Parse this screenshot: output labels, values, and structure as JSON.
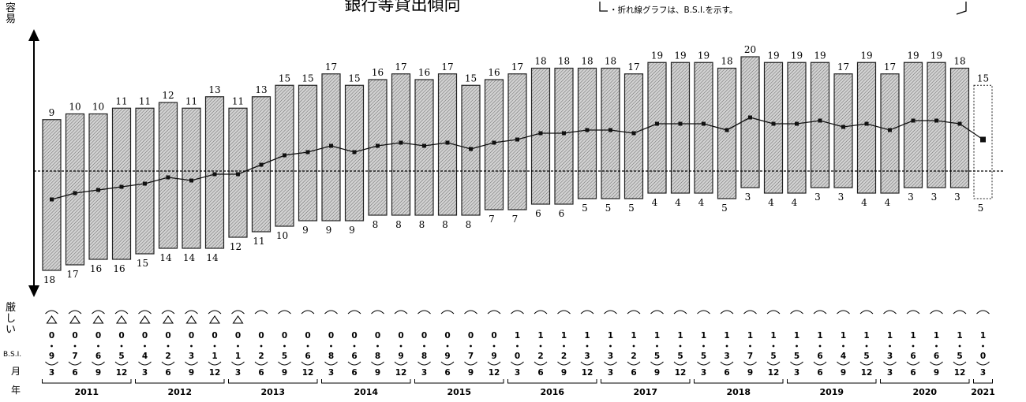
{
  "title": "銀行等貸出傾向",
  "legend_note": "・折れ線グラフは、B.S.I.を示す。",
  "y_axis": {
    "top_label": "容易",
    "bottom_label": "厳しい"
  },
  "row_labels": {
    "bsi": "B.S.I.",
    "month": "月",
    "year": "年"
  },
  "colors": {
    "bar_fill": "#c9c9c9",
    "bar_stroke": "#222222",
    "line": "#111111",
    "axis": "#000000"
  },
  "chart_data": {
    "type": "bar",
    "title": "銀行等貸出傾向",
    "note": "・折れ線グラフは、B.S.I.を示す。",
    "categories": [
      "2011-3",
      "2011-6",
      "2011-9",
      "2011-12",
      "2012-3",
      "2012-6",
      "2012-9",
      "2012-12",
      "2013-3",
      "2013-6",
      "2013-9",
      "2013-12",
      "2014-3",
      "2014-6",
      "2014-9",
      "2014-12",
      "2015-3",
      "2015-6",
      "2015-9",
      "2015-12",
      "2016-3",
      "2016-6",
      "2016-9",
      "2016-12",
      "2017-3",
      "2017-6",
      "2017-9",
      "2017-12",
      "2018-3",
      "2018-6",
      "2018-9",
      "2018-12",
      "2019-3",
      "2019-6",
      "2019-9",
      "2019-12",
      "2020-3",
      "2020-6",
      "2020-9",
      "2020-12",
      "2021-3"
    ],
    "months": [
      "3",
      "6",
      "9",
      "12",
      "3",
      "6",
      "9",
      "12",
      "3",
      "6",
      "9",
      "12",
      "3",
      "6",
      "9",
      "12",
      "3",
      "6",
      "9",
      "12",
      "3",
      "6",
      "9",
      "12",
      "3",
      "6",
      "9",
      "12",
      "3",
      "6",
      "9",
      "12",
      "3",
      "6",
      "9",
      "12",
      "3",
      "6",
      "9",
      "12",
      "3"
    ],
    "years": [
      {
        "label": "2011",
        "start": 0,
        "end": 3
      },
      {
        "label": "2012",
        "start": 4,
        "end": 7
      },
      {
        "label": "2013",
        "start": 8,
        "end": 11
      },
      {
        "label": "2014",
        "start": 12,
        "end": 15
      },
      {
        "label": "2015",
        "start": 16,
        "end": 19
      },
      {
        "label": "2016",
        "start": 20,
        "end": 23
      },
      {
        "label": "2017",
        "start": 24,
        "end": 27
      },
      {
        "label": "2018",
        "start": 28,
        "end": 31
      },
      {
        "label": "2019",
        "start": 32,
        "end": 35
      },
      {
        "label": "2020",
        "start": 36,
        "end": 39
      },
      {
        "label": "2021",
        "start": 40,
        "end": 40
      }
    ],
    "series": [
      {
        "name": "容易",
        "values": [
          9,
          10,
          10,
          11,
          11,
          12,
          11,
          13,
          11,
          13,
          15,
          15,
          17,
          15,
          16,
          17,
          16,
          17,
          15,
          16,
          17,
          18,
          18,
          18,
          18,
          17,
          19,
          19,
          19,
          18,
          20,
          19,
          19,
          19,
          17,
          19,
          17,
          19,
          19,
          18,
          15
        ]
      },
      {
        "name": "厳しい",
        "values": [
          18,
          17,
          16,
          16,
          15,
          14,
          14,
          14,
          12,
          11,
          10,
          9,
          9,
          9,
          8,
          8,
          8,
          8,
          8,
          7,
          7,
          6,
          6,
          5,
          5,
          5,
          4,
          4,
          4,
          5,
          3,
          4,
          4,
          3,
          3,
          4,
          4,
          3,
          3,
          3,
          5
        ]
      },
      {
        "name": "B.S.I.",
        "values": [
          -9,
          -7,
          -6,
          -5,
          -4,
          -2,
          -3,
          -1,
          -1,
          2,
          5,
          6,
          8,
          6,
          8,
          9,
          8,
          9,
          7,
          9,
          10,
          12,
          12,
          13,
          13,
          12,
          15,
          15,
          15,
          13,
          17,
          15,
          15,
          16,
          14,
          15,
          13,
          16,
          16,
          15,
          10
        ]
      }
    ],
    "bsi_labels": [
      "△9",
      "△7",
      "△6",
      "△5",
      "△4",
      "△2",
      "△3",
      "△1",
      "△1",
      "2",
      "5",
      "6",
      "8",
      "6",
      "8",
      "9",
      "8",
      "9",
      "7",
      "9",
      "10",
      "12",
      "12",
      "13",
      "13",
      "12",
      "15",
      "15",
      "15",
      "13",
      "17",
      "15",
      "15",
      "16",
      "14",
      "15",
      "13",
      "16",
      "16",
      "15",
      "10"
    ],
    "projected_index": 40,
    "grid": false,
    "ylim": [
      -20,
      22
    ]
  }
}
